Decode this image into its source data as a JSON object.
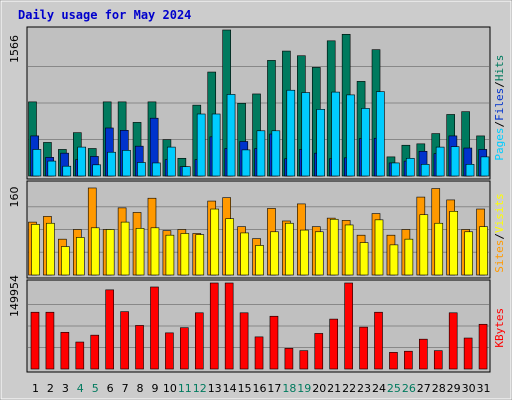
{
  "chart_data": {
    "type": "bar",
    "title": "Daily usage for May 2024",
    "categories": [
      "1",
      "2",
      "3",
      "4",
      "5",
      "6",
      "7",
      "8",
      "9",
      "10",
      "11",
      "12",
      "13",
      "14",
      "15",
      "16",
      "17",
      "18",
      "19",
      "20",
      "21",
      "22",
      "23",
      "24",
      "25",
      "26",
      "27",
      "28",
      "29",
      "30",
      "31"
    ],
    "weekend_days": [
      "4",
      "5",
      "11",
      "12",
      "18",
      "19",
      "25",
      "26"
    ],
    "panels": [
      {
        "name": "top",
        "ymax_label": "1566",
        "ymax": 1566,
        "right_label": [
          "Pages",
          "/",
          "Files",
          "/",
          "Hits"
        ],
        "series": [
          {
            "name": "Hits",
            "color": "#007a5e",
            "values": [
              795,
              360,
              285,
              465,
              295,
              795,
              795,
              575,
              795,
              390,
              190,
              760,
              1115,
              1566,
              780,
              880,
              1240,
              1340,
              1290,
              1165,
              1450,
              1520,
              1015,
              1355,
              205,
              330,
              345,
              455,
              660,
              690,
              430
            ]
          },
          {
            "name": "Files",
            "color": "#0033cc",
            "values": [
              430,
              200,
              245,
              175,
              210,
              515,
              490,
              320,
              620,
              175,
              100,
              175,
              420,
              295,
              370,
              295,
              450,
              185,
              285,
              245,
              185,
              195,
              400,
              405,
              140,
              160,
              265,
              240,
              430,
              300,
              285
            ]
          },
          {
            "name": "Pages",
            "color": "#00ccff",
            "values": [
              285,
              160,
              105,
              310,
              120,
              255,
              275,
              145,
              140,
              310,
              100,
              665,
              665,
              875,
              280,
              485,
              485,
              920,
              895,
              715,
              900,
              870,
              725,
              905,
              140,
              190,
              125,
              310,
              315,
              125,
              205
            ]
          }
        ]
      },
      {
        "name": "middle",
        "ymax_label": "160",
        "ymax": 160,
        "right_label": [
          "Sites",
          "/",
          "Visits"
        ],
        "series": [
          {
            "name": "Visits",
            "color": "#ff9900",
            "values": [
              93,
              103,
              63,
              80,
              153,
              80,
              118,
              110,
              135,
              78,
              80,
              73,
              130,
              136,
              85,
              64,
              117,
              95,
              125,
              85,
              100,
              96,
              70,
              108,
              70,
              80,
              137,
              152,
              132,
              80,
              116
            ]
          },
          {
            "name": "Sites",
            "color": "#ffff00",
            "values": [
              89,
              91,
              50,
              66,
              83,
              80,
              93,
              82,
              83,
              70,
              73,
              71,
              116,
              99,
              74,
              52,
              76,
              91,
              79,
              76,
              98,
              88,
              57,
              97,
              53,
              63,
              106,
              91,
              112,
              76,
              85
            ]
          }
        ]
      },
      {
        "name": "bottom",
        "ymax_label": "149954",
        "ymax": 149954,
        "right_label": [
          "KBytes"
        ],
        "series": [
          {
            "name": "KBytes",
            "color": "#ff0000",
            "values": [
              99000,
              99000,
              64000,
              47000,
              59000,
              138000,
              100000,
              76000,
              143000,
              63000,
              72000,
              98000,
              151000,
              150000,
              98000,
              56000,
              92000,
              36000,
              32000,
              62000,
              87000,
              151000,
              73000,
              99000,
              29000,
              31000,
              52000,
              32000,
              98000,
              54000,
              78000
            ]
          }
        ]
      }
    ]
  }
}
